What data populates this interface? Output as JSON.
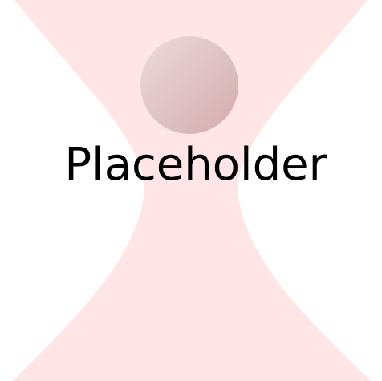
{
  "placeholder": {
    "label": "Placeholder",
    "icon": "avatar-silhouette-icon",
    "colors": {
      "background": "#ffffff",
      "silhouette": "#ffe5e5",
      "head_light": "#ead8d8",
      "head_dark": "#d4aeb0",
      "text": "#000000"
    }
  }
}
